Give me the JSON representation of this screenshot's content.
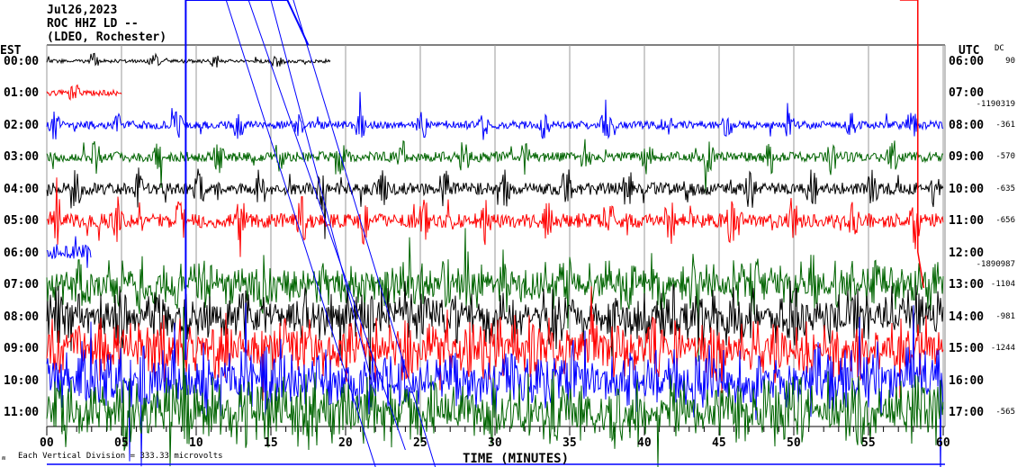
{
  "chart_data": {
    "type": "line",
    "title_lines": [
      "Jul26,2023",
      "ROC HHZ LD --",
      "(LDEO, Rochester)"
    ],
    "left_axis_title": "EST",
    "right_axis_title": "UTC",
    "dc_title": "DC",
    "xlabel": "TIME (MINUTES)",
    "xlim": [
      0,
      60
    ],
    "x_ticks": [
      "00",
      "05",
      "10",
      "15",
      "20",
      "25",
      "30",
      "35",
      "40",
      "45",
      "50",
      "55",
      "60"
    ],
    "scale_note": "Each Vertical Division = 333.33 microvolts",
    "series_colors": [
      "#000000",
      "#ff0000",
      "#0000ff",
      "#006400"
    ],
    "rows": [
      {
        "est": "00:00",
        "utc": "06:00",
        "dc": "90",
        "color": "#000000",
        "span": [
          0,
          19
        ]
      },
      {
        "est": "01:00",
        "utc": "07:00",
        "dc": "-1190319",
        "color": "#ff0000",
        "span": [
          0,
          5
        ]
      },
      {
        "est": "02:00",
        "utc": "08:00",
        "dc": "-361",
        "color": "#0000ff",
        "span": [
          0,
          60
        ]
      },
      {
        "est": "03:00",
        "utc": "09:00",
        "dc": "-570",
        "color": "#006400",
        "span": [
          0,
          60
        ]
      },
      {
        "est": "04:00",
        "utc": "10:00",
        "dc": "-635",
        "color": "#000000",
        "span": [
          0,
          60
        ]
      },
      {
        "est": "05:00",
        "utc": "11:00",
        "dc": "-656",
        "color": "#ff0000",
        "span": [
          0,
          60
        ]
      },
      {
        "est": "06:00",
        "utc": "12:00",
        "dc": "-1890987",
        "color": "#0000ff",
        "span": [
          0,
          3
        ]
      },
      {
        "est": "07:00",
        "utc": "13:00",
        "dc": "-1104",
        "color": "#006400",
        "span": [
          0,
          60
        ]
      },
      {
        "est": "08:00",
        "utc": "14:00",
        "dc": "-981",
        "color": "#000000",
        "span": [
          0,
          60
        ]
      },
      {
        "est": "09:00",
        "utc": "15:00",
        "dc": "-1244",
        "color": "#ff0000",
        "span": [
          0,
          60
        ]
      },
      {
        "est": "10:00",
        "utc": "16:00",
        "dc": "",
        "color": "#0000ff",
        "span": [
          0,
          60
        ]
      },
      {
        "est": "11:00",
        "utc": "17:00",
        "dc": "-565",
        "color": "#006400",
        "span": [
          0,
          60
        ]
      }
    ]
  }
}
